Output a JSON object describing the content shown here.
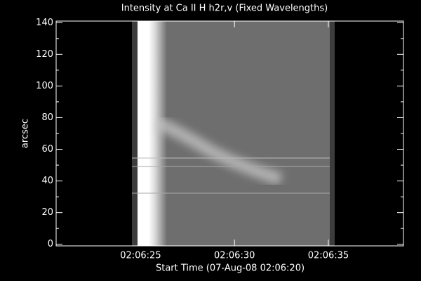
{
  "chart_data": {
    "type": "heatmap",
    "title": "Intensity at Ca II H h2r,v (Fixed Wavelengths)",
    "xlabel": "Start Time (07-Aug-08 02:06:20)",
    "ylabel": "arcsec",
    "xlim": [
      0.5,
      19
    ],
    "xticks": [
      {
        "value": 5,
        "label": "02:06:25"
      },
      {
        "value": 10,
        "label": "02:06:30"
      },
      {
        "value": 15,
        "label": "02:06:35"
      }
    ],
    "ylim": [
      -1,
      141
    ],
    "yticks": [
      0,
      20,
      40,
      60,
      80,
      100,
      120,
      140
    ]
  }
}
